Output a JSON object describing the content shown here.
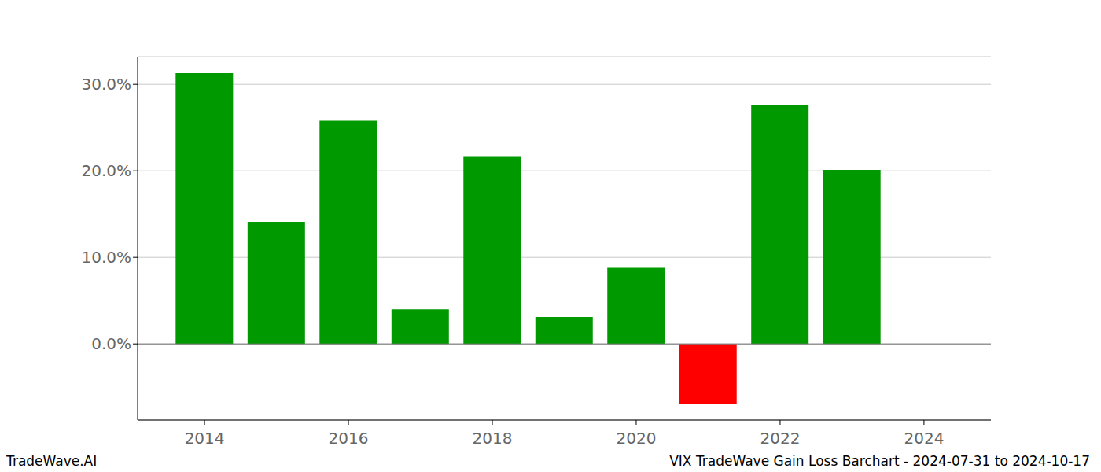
{
  "chart_data": {
    "type": "bar",
    "title": "VIX TradeWave Gain Loss Barchart - 2024-07-31 to 2024-10-17",
    "source": "TradeWave.AI",
    "x": [
      2014,
      2015,
      2016,
      2017,
      2018,
      2019,
      2020,
      2021,
      2022,
      2023
    ],
    "values": [
      31.3,
      14.1,
      25.8,
      4.0,
      21.7,
      3.1,
      8.8,
      -6.9,
      27.6,
      20.1
    ],
    "colors": [
      "#009900",
      "#009900",
      "#009900",
      "#009900",
      "#009900",
      "#009900",
      "#009900",
      "#ff0000",
      "#009900",
      "#009900"
    ],
    "xlim": [
      2013.07,
      2024.93
    ],
    "xticks": [
      2014,
      2016,
      2018,
      2020,
      2022,
      2024
    ],
    "ylim": [
      -8.8,
      33.2
    ],
    "yticks": [
      {
        "value": 0,
        "label": "0.0%"
      },
      {
        "value": 10,
        "label": "10.0%"
      },
      {
        "value": 20,
        "label": "20.0%"
      },
      {
        "value": 30,
        "label": "30.0%"
      }
    ],
    "grid": true
  }
}
